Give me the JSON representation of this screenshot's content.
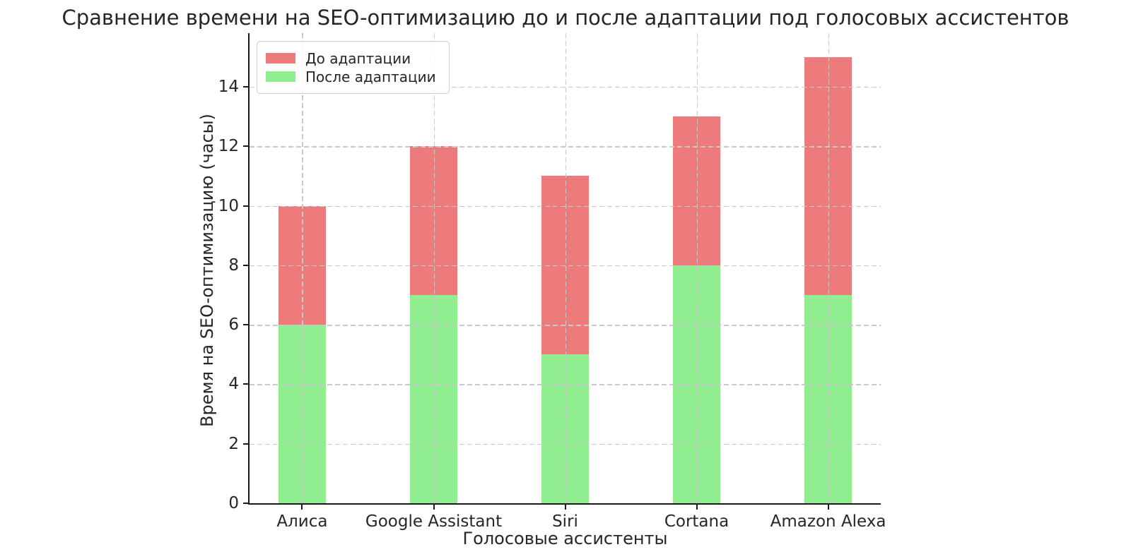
{
  "chart_data": {
    "type": "bar",
    "bar_mode": "overlaid",
    "title": "Сравнение времени на SEO-оптимизацию до и после адаптации под голосовых ассистентов",
    "xlabel": "Голосовые ассистенты",
    "ylabel": "Время на SEO-оптимизацию (часы)",
    "categories": [
      "Алиса",
      "Google Assistant",
      "Siri",
      "Cortana",
      "Amazon Alexa"
    ],
    "series": [
      {
        "name": "До адаптации",
        "color": "#ee7b7b",
        "values": [
          10,
          12,
          11,
          13,
          15
        ]
      },
      {
        "name": "После адаптации",
        "color": "#90ee90",
        "values": [
          6,
          7,
          5,
          8,
          7
        ]
      }
    ],
    "yticks": [
      0,
      2,
      4,
      6,
      8,
      10,
      12,
      14
    ],
    "ylim": [
      0,
      15.8
    ],
    "xlim": [
      -0.4,
      4.4
    ],
    "grid": true,
    "grid_style": "dashed",
    "grid_over_bars": true,
    "legend_position": "upper-left"
  },
  "colors": {
    "before_bar": "#ee7b7b",
    "after_bar": "#90ee90",
    "grid": "#c9c9c9",
    "spine": "#1a1a1a",
    "text": "#262626",
    "legend_border": "#cccccc"
  }
}
